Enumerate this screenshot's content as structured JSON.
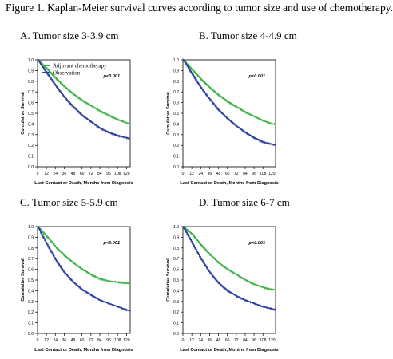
{
  "figure_title": "Figure 1. Kaplan-Meier survival curves according to tumor size and use of chemotherapy.",
  "colors": {
    "chemo": "#3cb448",
    "observation": "#2e3f9e",
    "axis": "#000000"
  },
  "chart_data": [
    {
      "type": "line",
      "panel_title": "A. Tumor size 3-3.9 cm",
      "xlabel": "Last Contact or Death, Months from Diagnosis",
      "ylabel": "Cumulative Survival",
      "xlim": [
        0,
        125
      ],
      "ylim": [
        0,
        1.0
      ],
      "xticks": [
        "0",
        "12",
        "24",
        "36",
        "48",
        "60",
        "72",
        "84",
        "96",
        "108",
        "120"
      ],
      "yticks": [
        "0.0",
        "0.1",
        "0.2",
        "0.3",
        "0.4",
        "0.5",
        "0.6",
        "0.7",
        "0.8",
        "0.9",
        "1.0"
      ],
      "annotation": "p<0.001",
      "legend": {
        "placement": "top",
        "entries": [
          "Adjuvant chemotherapy",
          "Observation"
        ]
      },
      "x": [
        0,
        12,
        24,
        36,
        48,
        60,
        72,
        84,
        96,
        108,
        120,
        125
      ],
      "series": [
        {
          "name": "Adjuvant chemotherapy",
          "values": [
            1.0,
            0.92,
            0.83,
            0.75,
            0.68,
            0.62,
            0.57,
            0.52,
            0.48,
            0.44,
            0.41,
            0.4
          ]
        },
        {
          "name": "Observation",
          "values": [
            1.0,
            0.88,
            0.76,
            0.65,
            0.56,
            0.48,
            0.42,
            0.36,
            0.32,
            0.29,
            0.27,
            0.26
          ]
        }
      ]
    },
    {
      "type": "line",
      "panel_title": "B. Tumor size 4-4.9 cm",
      "xlabel": "Last Contact or Death, Months from Diagnosis",
      "ylabel": "Cumulative Survival",
      "xlim": [
        0,
        125
      ],
      "ylim": [
        0,
        1.0
      ],
      "xticks": [
        "0",
        "12",
        "24",
        "36",
        "48",
        "60",
        "72",
        "84",
        "96",
        "108",
        "120"
      ],
      "yticks": [
        "0.0",
        "0.1",
        "0.2",
        "0.3",
        "0.4",
        "0.5",
        "0.6",
        "0.7",
        "0.8",
        "0.9",
        "1.0"
      ],
      "annotation": "p<0.001",
      "x": [
        0,
        12,
        24,
        36,
        48,
        60,
        72,
        84,
        96,
        108,
        120,
        125
      ],
      "series": [
        {
          "values": [
            1.0,
            0.91,
            0.82,
            0.74,
            0.67,
            0.61,
            0.56,
            0.51,
            0.47,
            0.43,
            0.4,
            0.4
          ]
        },
        {
          "values": [
            1.0,
            0.87,
            0.74,
            0.63,
            0.53,
            0.45,
            0.38,
            0.32,
            0.27,
            0.23,
            0.21,
            0.2
          ]
        }
      ]
    },
    {
      "type": "line",
      "panel_title": "C. Tumor size 5-5.9 cm",
      "xlabel": "Last Contact or Death, Months from Diagnosis",
      "ylabel": "Cumulative Survival",
      "xlim": [
        0,
        125
      ],
      "ylim": [
        0,
        1.0
      ],
      "xticks": [
        "0",
        "12",
        "24",
        "36",
        "48",
        "60",
        "72",
        "84",
        "96",
        "108",
        "120"
      ],
      "yticks": [
        "0.0",
        "0.1",
        "0.2",
        "0.3",
        "0.4",
        "0.5",
        "0.6",
        "0.7",
        "0.8",
        "0.9",
        "1.0"
      ],
      "annotation": "p<0.001",
      "x": [
        0,
        12,
        24,
        36,
        48,
        60,
        72,
        84,
        96,
        108,
        120,
        125
      ],
      "series": [
        {
          "values": [
            1.0,
            0.91,
            0.81,
            0.73,
            0.66,
            0.6,
            0.55,
            0.51,
            0.49,
            0.48,
            0.47,
            0.47
          ]
        },
        {
          "values": [
            1.0,
            0.84,
            0.69,
            0.57,
            0.48,
            0.41,
            0.36,
            0.31,
            0.28,
            0.25,
            0.22,
            0.21
          ]
        }
      ]
    },
    {
      "type": "line",
      "panel_title": "D. Tumor size 6-7 cm",
      "xlabel": "Last Contact or Death, Months from Diagnosis",
      "ylabel": "Cumulative Survival",
      "xlim": [
        0,
        125
      ],
      "ylim": [
        0,
        1.0
      ],
      "xticks": [
        "0",
        "12",
        "24",
        "36",
        "48",
        "60",
        "72",
        "84",
        "96",
        "108",
        "120"
      ],
      "yticks": [
        "0.0",
        "0.1",
        "0.2",
        "0.3",
        "0.4",
        "0.5",
        "0.6",
        "0.7",
        "0.8",
        "0.9",
        "1.0"
      ],
      "annotation": "p<0.001",
      "x": [
        0,
        12,
        24,
        36,
        48,
        60,
        72,
        84,
        96,
        108,
        120,
        125
      ],
      "series": [
        {
          "values": [
            1.0,
            0.93,
            0.83,
            0.74,
            0.66,
            0.6,
            0.55,
            0.5,
            0.46,
            0.43,
            0.41,
            0.41
          ]
        },
        {
          "values": [
            1.0,
            0.85,
            0.7,
            0.57,
            0.47,
            0.4,
            0.35,
            0.31,
            0.28,
            0.25,
            0.23,
            0.22
          ]
        }
      ]
    }
  ]
}
